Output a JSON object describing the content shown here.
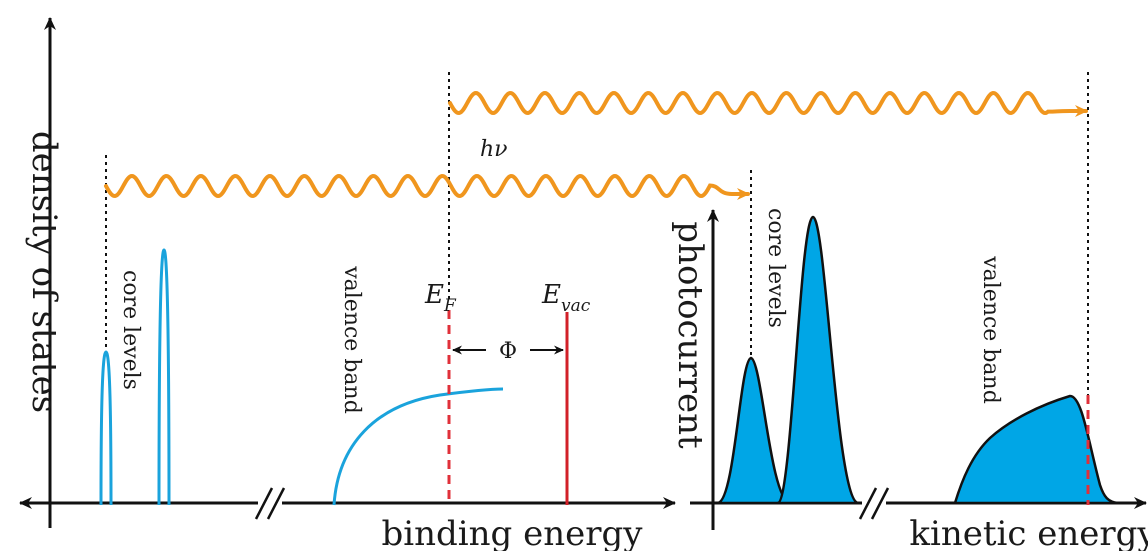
{
  "colors": {
    "axis": "#111111",
    "photon": "#f0961e",
    "level": "#1aa3dc",
    "fill": "#00a6e6",
    "fermi": "#e0303a",
    "vacuum": "#d22028",
    "guide": "#111111"
  },
  "left_panel": {
    "y_axis_label": "density of states",
    "x_axis_label": "binding energy",
    "core_levels_label": "core levels",
    "valence_band_label": "valence band",
    "fermi_label_main": "E",
    "fermi_label_sub": "F",
    "vacuum_label_main": "E",
    "vacuum_label_sub": "vac",
    "work_function_label": "Φ",
    "photon_label": "hν"
  },
  "right_panel": {
    "y_axis_label": "photocurrent",
    "x_axis_label": "kinetic energy",
    "core_levels_label": "core levels",
    "valence_band_label": "valence band"
  },
  "icons": [
    "photon-wave-arrow",
    "double-headed-arrow",
    "axis-break-icon"
  ]
}
